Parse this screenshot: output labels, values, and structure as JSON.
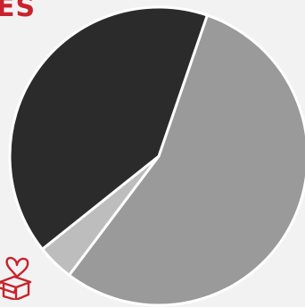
{
  "title_fragment": "ES",
  "colors": {
    "title": "#c8232d",
    "background": "#f2f2f2",
    "icon": "#c8232d"
  },
  "icons": {
    "corner": "heart-gift-box-icon"
  },
  "chart_data": {
    "type": "pie",
    "title": "",
    "slices": [
      {
        "value": 0.55,
        "color": "#9a9a9a"
      },
      {
        "value": 0.04,
        "color": "#bdbdbd"
      },
      {
        "value": 0.41,
        "color": "#2b2b2b"
      }
    ],
    "legend": "none",
    "data_labels": "none"
  }
}
